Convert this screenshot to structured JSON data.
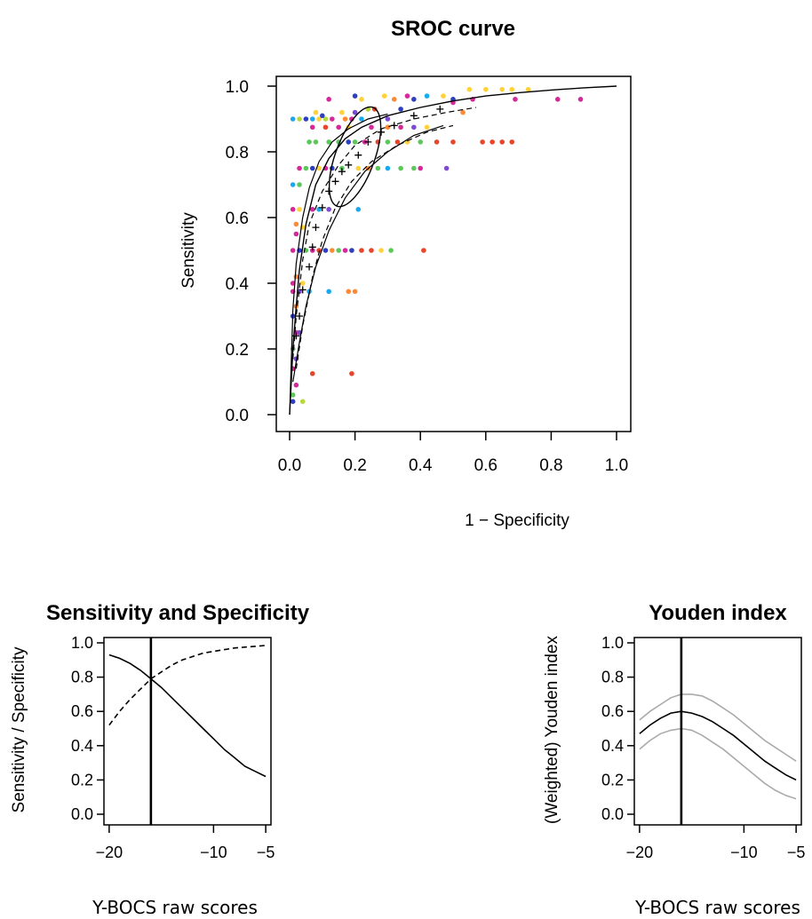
{
  "chart_data": [
    {
      "id": "sroc",
      "type": "scatter",
      "title": "SROC curve",
      "xlabel": "1 − Specificity",
      "ylabel": "Sensitivity",
      "xlim": [
        0,
        1
      ],
      "ylim": [
        0,
        1
      ],
      "xticks": [
        "0.0",
        "0.2",
        "0.4",
        "0.6",
        "0.8",
        "1.0"
      ],
      "yticks": [
        "0.0",
        "0.2",
        "0.4",
        "0.6",
        "0.8",
        "1.0"
      ],
      "grid": false,
      "curve": {
        "x": [
          0.0,
          0.01,
          0.02,
          0.03,
          0.05,
          0.08,
          0.12,
          0.17,
          0.22,
          0.3,
          0.4,
          0.5,
          0.6,
          0.7,
          0.8,
          0.9,
          1.0
        ],
        "y": [
          0.0,
          0.2,
          0.33,
          0.44,
          0.58,
          0.7,
          0.78,
          0.84,
          0.875,
          0.91,
          0.935,
          0.955,
          0.97,
          0.98,
          0.988,
          0.995,
          1.0
        ]
      },
      "upper_band": {
        "x": [
          0.0,
          0.01,
          0.02,
          0.04,
          0.06,
          0.09,
          0.13,
          0.18,
          0.24,
          0.3
        ],
        "y": [
          0.0,
          0.32,
          0.46,
          0.6,
          0.69,
          0.77,
          0.83,
          0.87,
          0.9,
          0.915
        ]
      },
      "lower_band": {
        "x": [
          0.01,
          0.03,
          0.05,
          0.08,
          0.12,
          0.17,
          0.23,
          0.3,
          0.38,
          0.47
        ],
        "y": [
          0.1,
          0.22,
          0.33,
          0.45,
          0.56,
          0.66,
          0.74,
          0.8,
          0.85,
          0.88
        ]
      },
      "dashed_upper": {
        "x": [
          0.01,
          0.02,
          0.04,
          0.06,
          0.1,
          0.15,
          0.2,
          0.28,
          0.38,
          0.48,
          0.57
        ],
        "y": [
          0.17,
          0.3,
          0.47,
          0.58,
          0.68,
          0.76,
          0.82,
          0.87,
          0.9,
          0.92,
          0.935
        ]
      },
      "dashed_lower": {
        "x": [
          0.02,
          0.04,
          0.07,
          0.1,
          0.14,
          0.19,
          0.25,
          0.33,
          0.42,
          0.5
        ],
        "y": [
          0.14,
          0.27,
          0.42,
          0.53,
          0.63,
          0.71,
          0.77,
          0.82,
          0.86,
          0.88
        ]
      },
      "confidence_ellipse": {
        "cx": 0.2,
        "cy": 0.785,
        "rx": 0.06,
        "ry": 0.16,
        "angle_deg": 20
      },
      "threshold_points": {
        "x": [
          0.02,
          0.03,
          0.04,
          0.06,
          0.07,
          0.08,
          0.1,
          0.12,
          0.14,
          0.16,
          0.18,
          0.21,
          0.24,
          0.28,
          0.32,
          0.38,
          0.46
        ],
        "y": [
          0.24,
          0.3,
          0.38,
          0.45,
          0.51,
          0.57,
          0.63,
          0.68,
          0.71,
          0.74,
          0.76,
          0.79,
          0.83,
          0.86,
          0.88,
          0.91,
          0.93
        ]
      },
      "study_points": [
        {
          "x": 0.01,
          "y": 0.9,
          "color": "#19a9f0"
        },
        {
          "x": 0.03,
          "y": 0.9,
          "color": "#b7d83c"
        },
        {
          "x": 0.05,
          "y": 0.9,
          "color": "#2d3fbf"
        },
        {
          "x": 0.07,
          "y": 0.9,
          "color": "#19a9f0"
        },
        {
          "x": 0.09,
          "y": 0.9,
          "color": "#ffd23b"
        },
        {
          "x": 0.11,
          "y": 0.9,
          "color": "#b7d83c"
        },
        {
          "x": 0.13,
          "y": 0.9,
          "color": "#d6279b"
        },
        {
          "x": 0.17,
          "y": 0.9,
          "color": "#ff8a33"
        },
        {
          "x": 0.19,
          "y": 0.9,
          "color": "#d6279b"
        },
        {
          "x": 0.22,
          "y": 0.9,
          "color": "#19a9f0"
        },
        {
          "x": 0.3,
          "y": 0.9,
          "color": "#7c4bd1"
        },
        {
          "x": 0.08,
          "y": 0.92,
          "color": "#ffd23b"
        },
        {
          "x": 0.1,
          "y": 0.91,
          "color": "#2d3fbf"
        },
        {
          "x": 0.16,
          "y": 0.92,
          "color": "#ffd23b"
        },
        {
          "x": 0.2,
          "y": 0.92,
          "color": "#7c4bd1"
        },
        {
          "x": 0.24,
          "y": 0.93,
          "color": "#b7d83c"
        },
        {
          "x": 0.26,
          "y": 0.93,
          "color": "#e8452a"
        },
        {
          "x": 0.34,
          "y": 0.93,
          "color": "#2d3fbf"
        },
        {
          "x": 0.12,
          "y": 0.96,
          "color": "#d6279b"
        },
        {
          "x": 0.2,
          "y": 0.97,
          "color": "#2d3fbf"
        },
        {
          "x": 0.22,
          "y": 0.96,
          "color": "#ffd23b"
        },
        {
          "x": 0.29,
          "y": 0.97,
          "color": "#ffd23b"
        },
        {
          "x": 0.32,
          "y": 0.96,
          "color": "#ff8a33"
        },
        {
          "x": 0.36,
          "y": 0.97,
          "color": "#d6279b"
        },
        {
          "x": 0.38,
          "y": 0.96,
          "color": "#2d3fbf"
        },
        {
          "x": 0.42,
          "y": 0.97,
          "color": "#19a9f0"
        },
        {
          "x": 0.47,
          "y": 0.97,
          "color": "#ffd23b"
        },
        {
          "x": 0.5,
          "y": 0.96,
          "color": "#2d3fbf"
        },
        {
          "x": 0.55,
          "y": 0.99,
          "color": "#ffd23b"
        },
        {
          "x": 0.6,
          "y": 0.99,
          "color": "#ffd23b"
        },
        {
          "x": 0.65,
          "y": 0.99,
          "color": "#ffd23b"
        },
        {
          "x": 0.68,
          "y": 0.99,
          "color": "#ffd23b"
        },
        {
          "x": 0.73,
          "y": 0.99,
          "color": "#ffd23b"
        },
        {
          "x": 0.5,
          "y": 0.95,
          "color": "#d6279b"
        },
        {
          "x": 0.56,
          "y": 0.96,
          "color": "#d6279b"
        },
        {
          "x": 0.69,
          "y": 0.96,
          "color": "#d6279b"
        },
        {
          "x": 0.82,
          "y": 0.96,
          "color": "#d6279b"
        },
        {
          "x": 0.89,
          "y": 0.96,
          "color": "#d6279b"
        },
        {
          "x": 0.53,
          "y": 0.92,
          "color": "#ff8a33"
        },
        {
          "x": 0.07,
          "y": 0.875,
          "color": "#d6279b"
        },
        {
          "x": 0.11,
          "y": 0.875,
          "color": "#e8452a"
        },
        {
          "x": 0.15,
          "y": 0.875,
          "color": "#d6279b"
        },
        {
          "x": 0.18,
          "y": 0.875,
          "color": "#ffd23b"
        },
        {
          "x": 0.25,
          "y": 0.875,
          "color": "#d6279b"
        },
        {
          "x": 0.3,
          "y": 0.875,
          "color": "#ff8a33"
        },
        {
          "x": 0.34,
          "y": 0.875,
          "color": "#d6279b"
        },
        {
          "x": 0.38,
          "y": 0.875,
          "color": "#7c4bd1"
        },
        {
          "x": 0.42,
          "y": 0.875,
          "color": "#ffd23b"
        },
        {
          "x": 0.06,
          "y": 0.83,
          "color": "#5cc85b"
        },
        {
          "x": 0.08,
          "y": 0.83,
          "color": "#5cc85b"
        },
        {
          "x": 0.12,
          "y": 0.83,
          "color": "#5cc85b"
        },
        {
          "x": 0.15,
          "y": 0.83,
          "color": "#5cc85b"
        },
        {
          "x": 0.18,
          "y": 0.83,
          "color": "#2d3fbf"
        },
        {
          "x": 0.2,
          "y": 0.83,
          "color": "#5cc85b"
        },
        {
          "x": 0.23,
          "y": 0.83,
          "color": "#d6279b"
        },
        {
          "x": 0.27,
          "y": 0.83,
          "color": "#e8452a"
        },
        {
          "x": 0.3,
          "y": 0.83,
          "color": "#5cc85b"
        },
        {
          "x": 0.33,
          "y": 0.83,
          "color": "#e8452a"
        },
        {
          "x": 0.36,
          "y": 0.83,
          "color": "#ffd23b"
        },
        {
          "x": 0.4,
          "y": 0.83,
          "color": "#5cc85b"
        },
        {
          "x": 0.45,
          "y": 0.83,
          "color": "#e8452a"
        },
        {
          "x": 0.5,
          "y": 0.83,
          "color": "#e8452a"
        },
        {
          "x": 0.59,
          "y": 0.83,
          "color": "#e8452a"
        },
        {
          "x": 0.62,
          "y": 0.83,
          "color": "#e8452a"
        },
        {
          "x": 0.65,
          "y": 0.83,
          "color": "#e8452a"
        },
        {
          "x": 0.68,
          "y": 0.83,
          "color": "#e8452a"
        },
        {
          "x": 0.03,
          "y": 0.75,
          "color": "#d6279b"
        },
        {
          "x": 0.05,
          "y": 0.75,
          "color": "#5cc85b"
        },
        {
          "x": 0.07,
          "y": 0.75,
          "color": "#2d3fbf"
        },
        {
          "x": 0.09,
          "y": 0.75,
          "color": "#ffd23b"
        },
        {
          "x": 0.11,
          "y": 0.75,
          "color": "#d6279b"
        },
        {
          "x": 0.13,
          "y": 0.75,
          "color": "#2d3fbf"
        },
        {
          "x": 0.16,
          "y": 0.75,
          "color": "#5cc85b"
        },
        {
          "x": 0.21,
          "y": 0.75,
          "color": "#ffd23b"
        },
        {
          "x": 0.24,
          "y": 0.75,
          "color": "#ff8a33"
        },
        {
          "x": 0.27,
          "y": 0.75,
          "color": "#5cc85b"
        },
        {
          "x": 0.3,
          "y": 0.75,
          "color": "#19a9f0"
        },
        {
          "x": 0.34,
          "y": 0.75,
          "color": "#5cc85b"
        },
        {
          "x": 0.38,
          "y": 0.75,
          "color": "#5cc85b"
        },
        {
          "x": 0.4,
          "y": 0.75,
          "color": "#d6279b"
        },
        {
          "x": 0.48,
          "y": 0.75,
          "color": "#7c4bd1"
        },
        {
          "x": 0.01,
          "y": 0.7,
          "color": "#19a9f0"
        },
        {
          "x": 0.03,
          "y": 0.7,
          "color": "#5cc85b"
        },
        {
          "x": 0.01,
          "y": 0.625,
          "color": "#d6279b"
        },
        {
          "x": 0.03,
          "y": 0.625,
          "color": "#ffd23b"
        },
        {
          "x": 0.07,
          "y": 0.625,
          "color": "#d6279b"
        },
        {
          "x": 0.09,
          "y": 0.625,
          "color": "#19a9f0"
        },
        {
          "x": 0.12,
          "y": 0.625,
          "color": "#7c4bd1"
        },
        {
          "x": 0.21,
          "y": 0.625,
          "color": "#19a9f0"
        },
        {
          "x": 0.02,
          "y": 0.58,
          "color": "#ff8a33"
        },
        {
          "x": 0.04,
          "y": 0.57,
          "color": "#ffd23b"
        },
        {
          "x": 0.02,
          "y": 0.55,
          "color": "#d6279b"
        },
        {
          "x": 0.01,
          "y": 0.5,
          "color": "#d6279b"
        },
        {
          "x": 0.03,
          "y": 0.5,
          "color": "#2d3fbf"
        },
        {
          "x": 0.05,
          "y": 0.5,
          "color": "#5cc85b"
        },
        {
          "x": 0.07,
          "y": 0.5,
          "color": "#d6279b"
        },
        {
          "x": 0.09,
          "y": 0.5,
          "color": "#e8452a"
        },
        {
          "x": 0.11,
          "y": 0.5,
          "color": "#2d3fbf"
        },
        {
          "x": 0.13,
          "y": 0.5,
          "color": "#ff8a33"
        },
        {
          "x": 0.15,
          "y": 0.5,
          "color": "#5cc85b"
        },
        {
          "x": 0.17,
          "y": 0.5,
          "color": "#d6279b"
        },
        {
          "x": 0.19,
          "y": 0.5,
          "color": "#2d3fbf"
        },
        {
          "x": 0.22,
          "y": 0.5,
          "color": "#e8452a"
        },
        {
          "x": 0.25,
          "y": 0.5,
          "color": "#e8452a"
        },
        {
          "x": 0.28,
          "y": 0.5,
          "color": "#ffd23b"
        },
        {
          "x": 0.31,
          "y": 0.5,
          "color": "#5cc85b"
        },
        {
          "x": 0.41,
          "y": 0.5,
          "color": "#e8452a"
        },
        {
          "x": 0.02,
          "y": 0.42,
          "color": "#ff8a33"
        },
        {
          "x": 0.01,
          "y": 0.4,
          "color": "#d6279b"
        },
        {
          "x": 0.04,
          "y": 0.4,
          "color": "#ffd23b"
        },
        {
          "x": 0.01,
          "y": 0.375,
          "color": "#d6279b"
        },
        {
          "x": 0.03,
          "y": 0.375,
          "color": "#7c4bd1"
        },
        {
          "x": 0.06,
          "y": 0.375,
          "color": "#19a9f0"
        },
        {
          "x": 0.12,
          "y": 0.375,
          "color": "#19a9f0"
        },
        {
          "x": 0.18,
          "y": 0.375,
          "color": "#ff8a33"
        },
        {
          "x": 0.2,
          "y": 0.375,
          "color": "#ff8a33"
        },
        {
          "x": 0.02,
          "y": 0.33,
          "color": "#ff8a33"
        },
        {
          "x": 0.01,
          "y": 0.3,
          "color": "#2d3fbf"
        },
        {
          "x": 0.02,
          "y": 0.25,
          "color": "#d6279b"
        },
        {
          "x": 0.03,
          "y": 0.25,
          "color": "#7c4bd1"
        },
        {
          "x": 0.01,
          "y": 0.2,
          "color": "#5cc85b"
        },
        {
          "x": 0.02,
          "y": 0.17,
          "color": "#7c4bd1"
        },
        {
          "x": 0.01,
          "y": 0.14,
          "color": "#d6279b"
        },
        {
          "x": 0.07,
          "y": 0.125,
          "color": "#e8452a"
        },
        {
          "x": 0.19,
          "y": 0.125,
          "color": "#e8452a"
        },
        {
          "x": 0.02,
          "y": 0.09,
          "color": "#d6279b"
        },
        {
          "x": 0.01,
          "y": 0.06,
          "color": "#5cc85b"
        },
        {
          "x": 0.01,
          "y": 0.04,
          "color": "#2d3fbf"
        },
        {
          "x": 0.04,
          "y": 0.04,
          "color": "#b7d83c"
        }
      ]
    },
    {
      "id": "sens-spec",
      "type": "line",
      "title": "Sensitivity and Specificity",
      "xlabel": "Y-BOCS raw scores",
      "ylabel": "Sensitivity / Specificity",
      "xlim": [
        -20.5,
        -4.5
      ],
      "ylim": [
        0,
        1.0
      ],
      "xticks": [
        -20,
        -10,
        -5
      ],
      "xtick_labels": [
        "−20",
        "−10",
        "−5"
      ],
      "yticks": [
        "0.0",
        "0.2",
        "0.4",
        "0.6",
        "0.8",
        "1.0"
      ],
      "vline": -16,
      "x": [
        -20,
        -19,
        -18,
        -17,
        -16,
        -15,
        -14,
        -13,
        -12,
        -11,
        -10,
        -9,
        -8,
        -7,
        -6,
        -5
      ],
      "series": [
        {
          "style": "solid",
          "values": [
            0.93,
            0.91,
            0.88,
            0.84,
            0.79,
            0.74,
            0.68,
            0.62,
            0.56,
            0.5,
            0.44,
            0.38,
            0.33,
            0.28,
            0.25,
            0.22
          ]
        },
        {
          "style": "dashed",
          "values": [
            0.52,
            0.6,
            0.67,
            0.73,
            0.79,
            0.83,
            0.87,
            0.9,
            0.92,
            0.94,
            0.95,
            0.96,
            0.97,
            0.975,
            0.98,
            0.985
          ]
        }
      ]
    },
    {
      "id": "youden",
      "type": "line",
      "title": "Youden index",
      "xlabel": "Y-BOCS raw scores",
      "ylabel": "(Weighted) Youden index",
      "xlim": [
        -20.5,
        -4.5
      ],
      "ylim": [
        0,
        1.0
      ],
      "xticks": [
        -20,
        -10,
        -5
      ],
      "xtick_labels": [
        "−20",
        "−10",
        "−5"
      ],
      "yticks": [
        "0.0",
        "0.2",
        "0.4",
        "0.6",
        "0.8",
        "1.0"
      ],
      "vline": -16,
      "x": [
        -20,
        -19,
        -18,
        -17,
        -16,
        -15,
        -14,
        -13,
        -12,
        -11,
        -10,
        -9,
        -8,
        -7,
        -6,
        -5
      ],
      "series": [
        {
          "style": "solid",
          "color": "#000000",
          "values": [
            0.47,
            0.52,
            0.56,
            0.59,
            0.6,
            0.59,
            0.57,
            0.54,
            0.5,
            0.46,
            0.41,
            0.36,
            0.31,
            0.27,
            0.23,
            0.2
          ]
        },
        {
          "style": "solid",
          "color": "#aaaaaa",
          "values": [
            0.55,
            0.6,
            0.64,
            0.68,
            0.7,
            0.7,
            0.69,
            0.66,
            0.62,
            0.58,
            0.53,
            0.48,
            0.43,
            0.39,
            0.35,
            0.31
          ]
        },
        {
          "style": "solid",
          "color": "#aaaaaa",
          "values": [
            0.38,
            0.43,
            0.47,
            0.49,
            0.5,
            0.49,
            0.46,
            0.42,
            0.38,
            0.33,
            0.28,
            0.23,
            0.18,
            0.14,
            0.11,
            0.09
          ]
        }
      ]
    }
  ]
}
